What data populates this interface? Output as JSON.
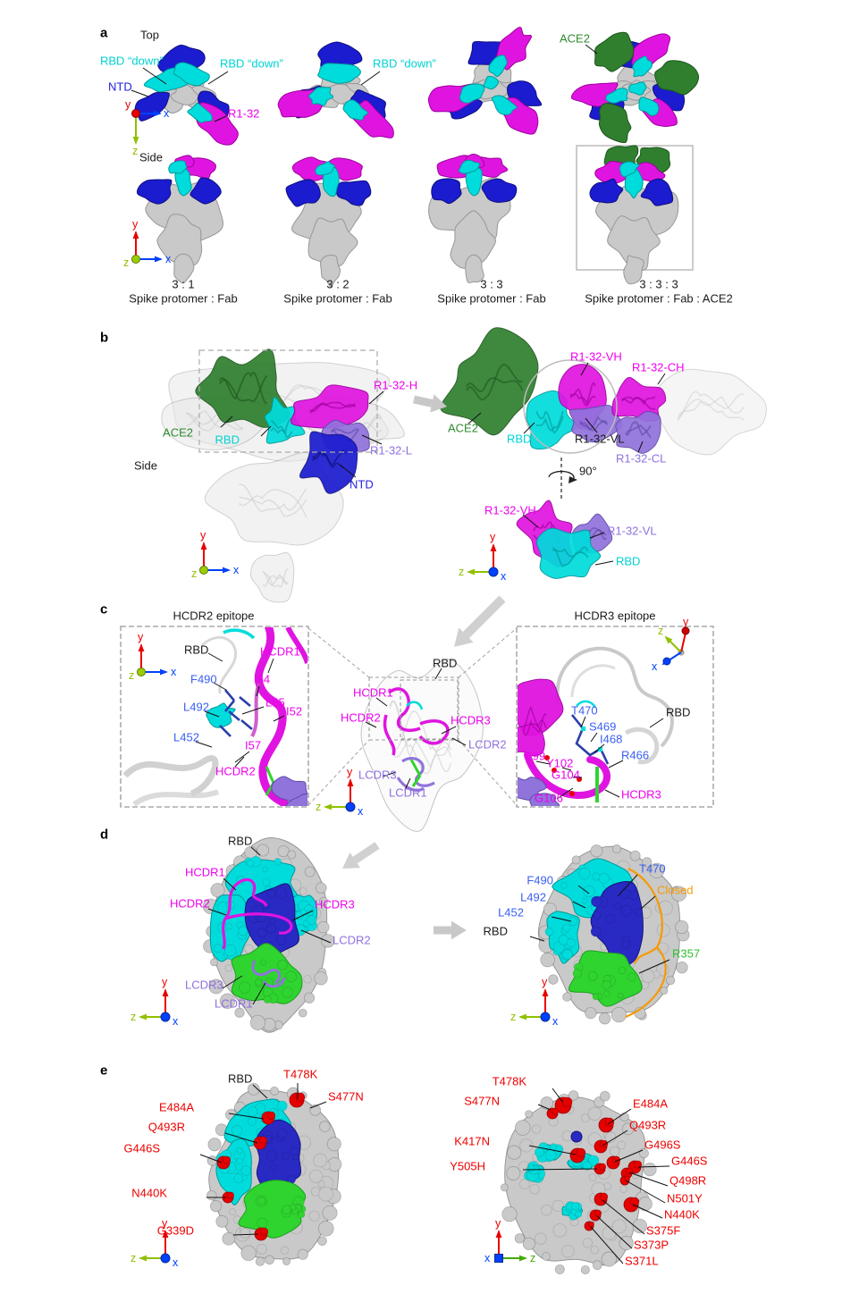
{
  "palette": {
    "fab_magenta": "#e014e0",
    "rbd_cyan": "#00dcdc",
    "ntd_blue": "#1b1bd0",
    "ace2_green": "#2f7f2f",
    "light_chain_purple": "#9173dc",
    "epitope_core_blue": "#2929c4",
    "epitope_green": "#2fd42f",
    "mutation_red": "#e60000",
    "closed_outline_orange": "#f59a00",
    "residue_label_blue": "#3a5ff0",
    "spike_gray": "#c9c9c9"
  },
  "axis": {
    "x": "x",
    "y": "y",
    "z": "z"
  },
  "panel_a": {
    "tag": "a",
    "top": "Top",
    "side": "Side",
    "rbd_down": "RBD “down”",
    "ntd": "NTD",
    "fab": "R1-32",
    "ace2": "ACE2",
    "captions": [
      {
        "ratio": "3 : 1",
        "desc": "Spike protomer : Fab"
      },
      {
        "ratio": "3 : 2",
        "desc": "Spike protomer : Fab"
      },
      {
        "ratio": "3 : 3",
        "desc": "Spike protomer : Fab"
      },
      {
        "ratio": "3 : 3 : 3",
        "desc": "Spike protomer : Fab : ACE2"
      }
    ]
  },
  "panel_b": {
    "tag": "b",
    "side": "Side",
    "ace2": "ACE2",
    "rbd": "RBD",
    "heavy": "R1-32-H",
    "light": "R1-32-L",
    "ntd": "NTD",
    "vh": "R1-32-VH",
    "ch": "R1-32-CH",
    "vl": "R1-32-VL",
    "cl": "R1-32-CL",
    "rotation": "90°"
  },
  "panel_c": {
    "tag": "c",
    "hcdr2_title": "HCDR2 epitope",
    "hcdr3_title": "HCDR3 epitope",
    "left": {
      "rbd": "RBD",
      "hcdr1": "HCDR1",
      "f490": "F490",
      "i54": "I54",
      "l55": "L55",
      "i52": "I52",
      "l492": "L492",
      "l452": "L452",
      "i57": "I57",
      "hcdr2": "HCDR2"
    },
    "center": {
      "rbd": "RBD",
      "hcdr1": "HCDR1",
      "hcdr2": "HCDR2",
      "hcdr3": "HCDR3",
      "lcdr2": "LCDR2",
      "lcdr3": "LCDR3",
      "lcdr1": "LCDR1"
    },
    "right": {
      "t470": "T470",
      "s469": "S469",
      "i468": "I468",
      "r466": "R466",
      "rbd": "RBD",
      "e99": "E99",
      "y102": "Y102",
      "g104": "G104",
      "g106": "G106",
      "hcdr3": "HCDR3"
    }
  },
  "panel_d": {
    "tag": "d",
    "left": {
      "rbd": "RBD",
      "hcdr1": "HCDR1",
      "hcdr2": "HCDR2",
      "hcdr3": "HCDR3",
      "lcdr2": "LCDR2",
      "lcdr3": "LCDR3",
      "lcdr1": "LCDR1"
    },
    "right": {
      "f490": "F490",
      "l492": "L492",
      "l452": "L452",
      "t470": "T470",
      "closed": "Closed",
      "rbd": "RBD",
      "r357": "R357"
    }
  },
  "panel_e": {
    "tag": "e",
    "left": {
      "rbd": "RBD",
      "t478k": "T478K",
      "s477n": "S477N",
      "e484a": "E484A",
      "q493r": "Q493R",
      "g446s": "G446S",
      "n440k": "N440K",
      "g339d": "G339D"
    },
    "right": {
      "t478k": "T478K",
      "s477n": "S477N",
      "e484a": "E484A",
      "q493r": "Q493R",
      "k417n": "K417N",
      "g496s": "G496S",
      "g446s": "G446S",
      "y505h": "Y505H",
      "q498r": "Q498R",
      "n501y": "N501Y",
      "n440k": "N440K",
      "s375f": "S375F",
      "s373p": "S373P",
      "s371l": "S371L"
    }
  }
}
